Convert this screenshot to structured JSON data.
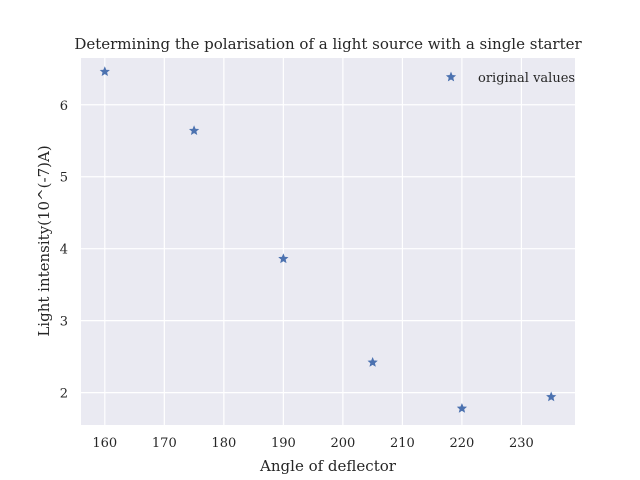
{
  "colors": {
    "plot_background": "#eaeaf2",
    "grid": "#ffffff",
    "marker": "#4c72b0",
    "text": "#262626"
  },
  "chart_data": {
    "type": "scatter",
    "title": "Determining the polarisation of a light source with a single starter",
    "xlabel": "Angle of deflector",
    "ylabel": "Light intensity(10^(-7)A)",
    "xlim": [
      156,
      239
    ],
    "ylim": [
      1.55,
      6.65
    ],
    "xticks": [
      160,
      170,
      180,
      190,
      200,
      210,
      220,
      230
    ],
    "yticks": [
      2,
      3,
      4,
      5,
      6
    ],
    "grid": true,
    "legend_position": "top-right",
    "marker": "star",
    "series": [
      {
        "name": "original values",
        "x": [
          160,
          175,
          190,
          205,
          220,
          235
        ],
        "y": [
          6.46,
          5.64,
          3.86,
          2.42,
          1.78,
          1.94
        ]
      }
    ]
  }
}
